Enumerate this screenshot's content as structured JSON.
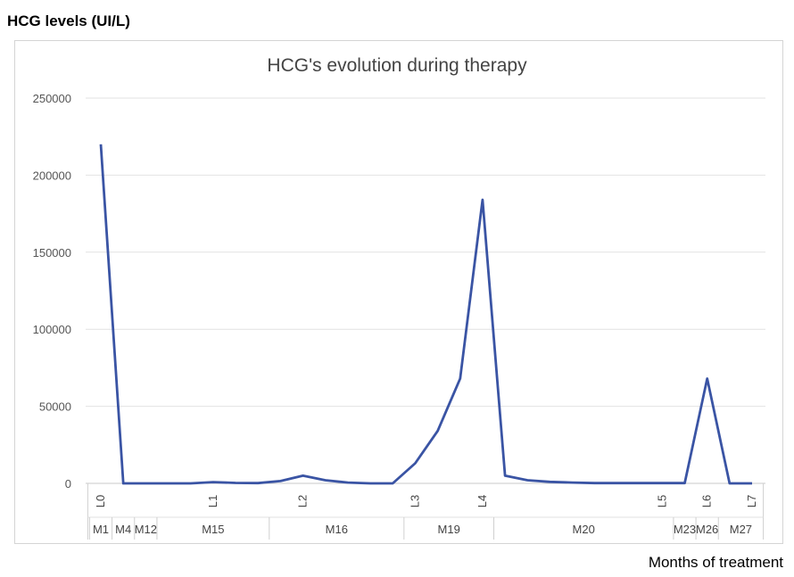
{
  "page": {
    "ylabel": "HCG levels (UI/L)",
    "xlabel": "Months of treatment"
  },
  "chart_data": {
    "type": "line",
    "title": "HCG's evolution during therapy",
    "ylim": [
      0,
      250000
    ],
    "yticks": [
      0,
      50000,
      100000,
      150000,
      200000,
      250000
    ],
    "grid": true,
    "line_color": "#3a54a4",
    "x": [
      "L0",
      "",
      "",
      "",
      "",
      "L1",
      "",
      "",
      "",
      "L2",
      "",
      "",
      "",
      "",
      "L3",
      "",
      "",
      "L4",
      "",
      "",
      "",
      "",
      "",
      "",
      "",
      "L5",
      "",
      "L6",
      "",
      ""
    ],
    "values": [
      220000,
      0,
      0,
      0,
      0,
      800,
      300,
      200,
      1500,
      5000,
      2000,
      500,
      0,
      0,
      13000,
      34000,
      68000,
      184000,
      5000,
      2000,
      1000,
      500,
      200,
      200,
      200,
      200,
      200,
      68000,
      0,
      0
    ],
    "label_markers": [
      {
        "label": "L0",
        "index": 0
      },
      {
        "label": "L1",
        "index": 5
      },
      {
        "label": "L2",
        "index": 9
      },
      {
        "label": "L3",
        "index": 14
      },
      {
        "label": "L4",
        "index": 17
      },
      {
        "label": "L5",
        "index": 25
      },
      {
        "label": "L6",
        "index": 27
      },
      {
        "label": "L7",
        "index": 29
      }
    ],
    "month_groups": [
      {
        "label": "M1",
        "start": 0,
        "end": 0
      },
      {
        "label": "M4",
        "start": 1,
        "end": 1
      },
      {
        "label": "M12",
        "start": 2,
        "end": 2
      },
      {
        "label": "M15",
        "start": 3,
        "end": 7
      },
      {
        "label": "M16",
        "start": 8,
        "end": 13
      },
      {
        "label": "M19",
        "start": 14,
        "end": 17
      },
      {
        "label": "M20",
        "start": 18,
        "end": 25
      },
      {
        "label": "M23",
        "start": 26,
        "end": 26
      },
      {
        "label": "M26",
        "start": 27,
        "end": 27
      },
      {
        "label": "M27",
        "start": 28,
        "end": 29
      }
    ]
  }
}
